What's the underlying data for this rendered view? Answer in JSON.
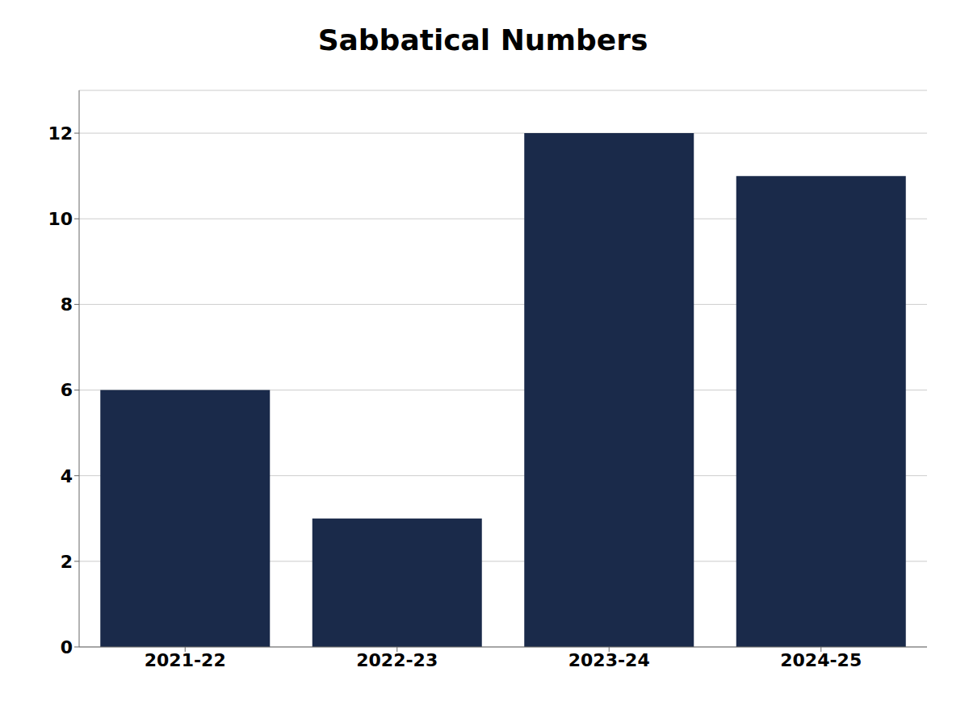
{
  "chart_data": {
    "type": "bar",
    "title": "Sabbatical Numbers",
    "categories": [
      "2021-22",
      "2022-23",
      "2023-24",
      "2024-25"
    ],
    "values": [
      6,
      3,
      12,
      11
    ],
    "color": "#1a2a4a",
    "ylim": [
      0,
      13
    ],
    "yticks": [
      0,
      2,
      4,
      6,
      8,
      10,
      12
    ],
    "grid": true
  }
}
